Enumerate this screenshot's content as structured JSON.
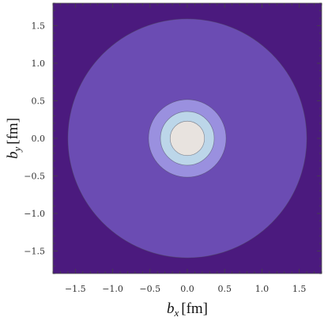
{
  "chart_data": {
    "type": "contour",
    "xlabel": {
      "var": "b",
      "sub": "x",
      "unit": "[fm]"
    },
    "ylabel": {
      "var": "b",
      "sub": "y",
      "unit": "[fm]"
    },
    "xlim": [
      -1.8,
      1.8
    ],
    "ylim": [
      -1.8,
      1.8
    ],
    "xticks": [
      -1.5,
      -1.0,
      -0.5,
      0.0,
      0.5,
      1.0,
      1.5
    ],
    "yticks": [
      -1.5,
      -1.0,
      -0.5,
      0.0,
      0.5,
      1.0,
      1.5
    ],
    "xtick_labels": [
      "−1.5",
      "−1.0",
      "−0.5",
      "0.0",
      "0.5",
      "1.0",
      "1.5"
    ],
    "ytick_labels": [
      "−1.5",
      "−1.0",
      "−0.5",
      "0.0",
      "0.5",
      "1.0",
      "1.5"
    ],
    "background_color": "#4b1a7e",
    "contour_radii": [
      1.6,
      0.52,
      0.36,
      0.23
    ],
    "contour_colors": [
      "#6b4cb3",
      "#9a90df",
      "#bcd6e9",
      "#e8e3df"
    ],
    "center": [
      0.0,
      0.0
    ],
    "grid": false
  }
}
